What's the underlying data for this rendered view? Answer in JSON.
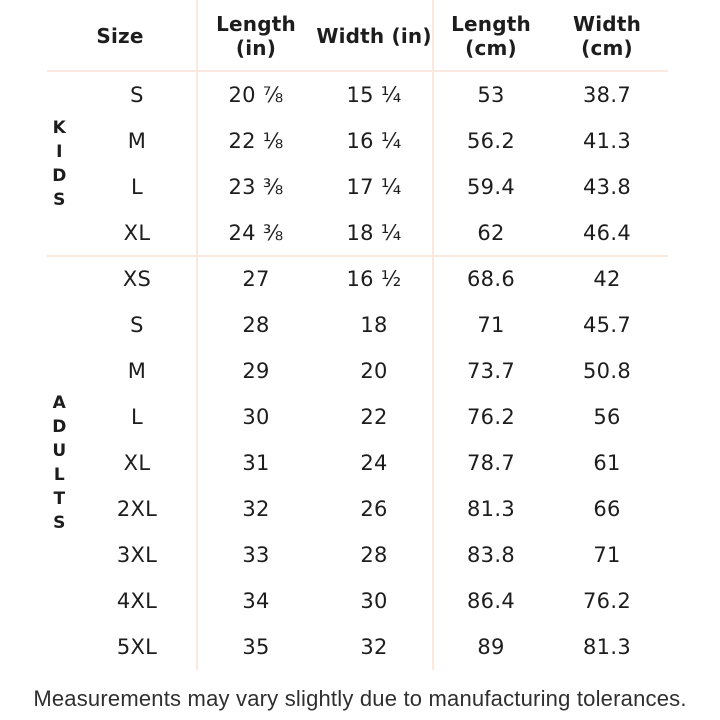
{
  "chart_data": {
    "type": "table",
    "header": {
      "size": [
        "Size"
      ],
      "length_in": [
        "Length",
        "(in)"
      ],
      "width_in": [
        "Width (in)"
      ],
      "length_cm": [
        "Length",
        "(cm)"
      ],
      "width_cm": [
        "Width",
        "(cm)"
      ]
    },
    "sections": [
      {
        "label": "KIDS",
        "rows": [
          {
            "size": "S",
            "length_in": "20 ⅞",
            "width_in": "15 ¼",
            "length_cm": "53",
            "width_cm": "38.7"
          },
          {
            "size": "M",
            "length_in": "22 ⅛",
            "width_in": "16 ¼",
            "length_cm": "56.2",
            "width_cm": "41.3"
          },
          {
            "size": "L",
            "length_in": "23 ⅜",
            "width_in": "17 ¼",
            "length_cm": "59.4",
            "width_cm": "43.8"
          },
          {
            "size": "XL",
            "length_in": "24 ⅜",
            "width_in": "18 ¼",
            "length_cm": "62",
            "width_cm": "46.4"
          }
        ]
      },
      {
        "label": "ADULTS",
        "rows": [
          {
            "size": "XS",
            "length_in": "27",
            "width_in": "16 ½",
            "length_cm": "68.6",
            "width_cm": "42"
          },
          {
            "size": "S",
            "length_in": "28",
            "width_in": "18",
            "length_cm": "71",
            "width_cm": "45.7"
          },
          {
            "size": "M",
            "length_in": "29",
            "width_in": "20",
            "length_cm": "73.7",
            "width_cm": "50.8"
          },
          {
            "size": "L",
            "length_in": "30",
            "width_in": "22",
            "length_cm": "76.2",
            "width_cm": "56"
          },
          {
            "size": "XL",
            "length_in": "31",
            "width_in": "24",
            "length_cm": "78.7",
            "width_cm": "61"
          },
          {
            "size": "2XL",
            "length_in": "32",
            "width_in": "26",
            "length_cm": "81.3",
            "width_cm": "66"
          },
          {
            "size": "3XL",
            "length_in": "33",
            "width_in": "28",
            "length_cm": "83.8",
            "width_cm": "71"
          },
          {
            "size": "4XL",
            "length_in": "34",
            "width_in": "30",
            "length_cm": "86.4",
            "width_cm": "76.2"
          },
          {
            "size": "5XL",
            "length_in": "35",
            "width_in": "32",
            "length_cm": "89",
            "width_cm": "81.3"
          }
        ]
      }
    ],
    "footnote": "Measurements may vary slightly due to manufacturing tolerances.",
    "layout": {
      "grid": "off",
      "legend": "none"
    }
  },
  "colors": {
    "background": "#ffffff",
    "divider_line": "#fbe8df",
    "table_text": "#1d1d1d",
    "footnote_text": "#2f2f2f"
  }
}
